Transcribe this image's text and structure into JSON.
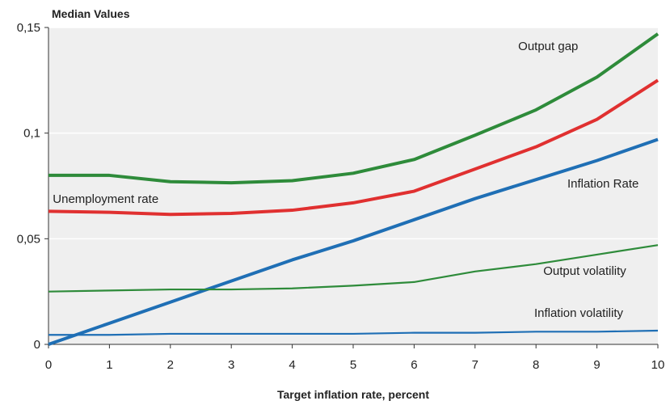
{
  "chart_data": {
    "type": "line",
    "title": "Median Values",
    "xlabel": "Target inflation rate, percent",
    "ylabel": "",
    "x": [
      0,
      1,
      2,
      3,
      4,
      5,
      6,
      7,
      8,
      9,
      10
    ],
    "xlim": [
      0,
      10
    ],
    "ylim": [
      0,
      0.15
    ],
    "x_ticks": [
      "0",
      "1",
      "2",
      "3",
      "4",
      "5",
      "6",
      "7",
      "8",
      "9",
      "10"
    ],
    "y_ticks": [
      {
        "value": 0,
        "label": "0"
      },
      {
        "value": 0.05,
        "label": "0,05"
      },
      {
        "value": 0.1,
        "label": "0,1"
      },
      {
        "value": 0.15,
        "label": "0,15"
      }
    ],
    "grid": "horizontal",
    "plot_background": "#efefef",
    "series": [
      {
        "name": "Output gap",
        "color": "#2e8b3a",
        "width": "thick",
        "values": [
          0.08,
          0.08,
          0.077,
          0.0765,
          0.0775,
          0.081,
          0.0875,
          0.099,
          0.111,
          0.1265,
          0.147
        ]
      },
      {
        "name": "Unemployment rate",
        "color": "#e03030",
        "width": "thick",
        "values": [
          0.063,
          0.0625,
          0.0615,
          0.062,
          0.0635,
          0.067,
          0.0725,
          0.083,
          0.0935,
          0.1065,
          0.125
        ]
      },
      {
        "name": "Inflation Rate",
        "color": "#1f6fb5",
        "width": "thick",
        "values": [
          0.0,
          0.01,
          0.02,
          0.03,
          0.04,
          0.049,
          0.059,
          0.069,
          0.078,
          0.087,
          0.097
        ]
      },
      {
        "name": "Output volatility",
        "color": "#2e8b3a",
        "width": "thin",
        "values": [
          0.025,
          0.0255,
          0.026,
          0.026,
          0.0265,
          0.0278,
          0.0295,
          0.0345,
          0.038,
          0.0425,
          0.047
        ]
      },
      {
        "name": "Inflation volatility",
        "color": "#1f6fb5",
        "width": "thin",
        "values": [
          0.0045,
          0.0045,
          0.005,
          0.005,
          0.005,
          0.005,
          0.0055,
          0.0055,
          0.006,
          0.006,
          0.0065
        ]
      }
    ]
  }
}
